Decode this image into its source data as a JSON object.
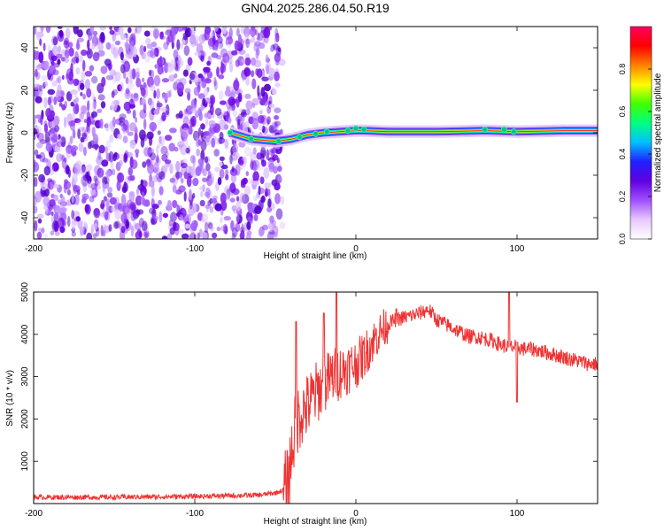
{
  "title": "GN04.2025.286.04.50.R19",
  "chart_data": [
    {
      "type": "heatmap",
      "title": "GN04.2025.286.04.50.R19",
      "xlabel": "Height of straight line (km)",
      "ylabel": "Frequency (Hz)",
      "xlim": [
        -200,
        150
      ],
      "ylim": [
        -50,
        50
      ],
      "xticks": [
        -200,
        -100,
        0,
        100
      ],
      "yticks": [
        -40,
        -20,
        0,
        20,
        40
      ],
      "colorbar": {
        "label": "Normalized spectral amplitude",
        "range": [
          0,
          1
        ],
        "ticks": [
          0.0,
          0.2,
          0.4,
          0.6,
          0.8
        ],
        "tick_labels": [
          "0.0",
          "0.2",
          "0.4",
          "0.6",
          "0.8"
        ],
        "colors": [
          "#ffffff",
          "#e8c8ff",
          "#a050ff",
          "#6000e0",
          "#2020ff",
          "#00c0ff",
          "#00ff80",
          "#40ff00",
          "#ffff00",
          "#ff8000",
          "#ff0000",
          "#ff0060"
        ]
      },
      "noise_region_x": [
        -200,
        -50
      ],
      "ridge": {
        "x": [
          -78,
          -65,
          -50,
          -40,
          -30,
          -20,
          -10,
          0,
          5,
          20,
          50,
          80,
          100,
          130,
          150
        ],
        "freq": [
          0,
          -3,
          -4,
          -3,
          -1,
          0,
          0.5,
          1,
          1,
          0.5,
          0.5,
          1,
          0.5,
          1,
          1
        ]
      }
    },
    {
      "type": "line",
      "title": "",
      "xlabel": "Height of straight line (km)",
      "ylabel": "SNR (10 * v/v)",
      "xlim": [
        -200,
        150
      ],
      "ylim": [
        0,
        5000
      ],
      "xticks": [
        -200,
        -100,
        0,
        100
      ],
      "yticks": [
        1000,
        2000,
        3000,
        4000,
        5000
      ],
      "color": "#f03232",
      "series": [
        {
          "name": "SNR",
          "x": [
            -200,
            -150,
            -100,
            -60,
            -50,
            -45,
            -42,
            -40,
            -38,
            -35,
            -30,
            -25,
            -20,
            -15,
            -10,
            -5,
            0,
            5,
            10,
            15,
            20,
            25,
            30,
            35,
            40,
            45,
            50,
            55,
            60,
            65,
            70,
            75,
            80,
            85,
            90,
            95,
            100,
            105,
            110,
            115,
            120,
            125,
            130,
            135,
            140,
            145,
            150
          ],
          "values": [
            150,
            150,
            170,
            200,
            250,
            320,
            500,
            1200,
            1700,
            2100,
            2300,
            2600,
            2800,
            3000,
            3100,
            3200,
            3300,
            3500,
            3800,
            4050,
            4250,
            4350,
            4400,
            4450,
            4500,
            4600,
            4350,
            4250,
            4150,
            4050,
            3950,
            3950,
            3900,
            3850,
            3750,
            3700,
            3700,
            3650,
            3650,
            3600,
            3550,
            3500,
            3450,
            3400,
            3350,
            3300,
            3300
          ],
          "spikes": [
            [
              -37,
              4300
            ],
            [
              -12,
              5000
            ],
            [
              -20,
              4500
            ],
            [
              25,
              4600
            ],
            [
              95,
              5000
            ],
            [
              100,
              2400
            ]
          ]
        }
      ]
    }
  ]
}
